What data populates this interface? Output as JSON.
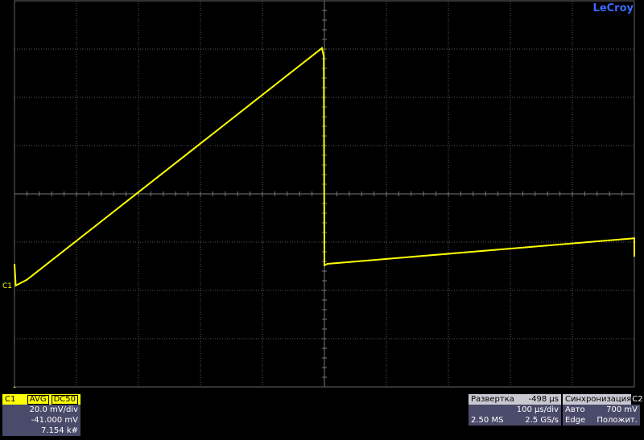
{
  "logo": "LeCroy",
  "channel_marker": "C1",
  "chart_data": {
    "type": "line",
    "color": "#ffff00",
    "x": [
      0,
      0.02,
      0.2,
      4.96,
      4.99,
      5.0,
      5.05,
      10,
      10
    ],
    "y": [
      -1.45,
      -1.9,
      -1.78,
      3.02,
      2.85,
      -1.48,
      -1.45,
      -0.92,
      -1.3
    ],
    "xlim": [
      0,
      10
    ],
    "ylim": [
      -4,
      4
    ]
  },
  "channel": {
    "name": "C1",
    "mode": "AVG",
    "coupling": "DC50",
    "scale": "20.0 mV/div",
    "offset": "-41.000 mV",
    "sweeps": "7.154 k#"
  },
  "timebase": {
    "title": "Развертка",
    "delay": "-498 µs",
    "scale": "100 µs/div",
    "samples": "2.50 MS",
    "rate": "2.5 GS/s"
  },
  "trigger": {
    "title": "Синхронизация",
    "source": "C2",
    "mode": "Авто",
    "level": "700 mV",
    "type": "Edge",
    "slope": "Положит."
  }
}
